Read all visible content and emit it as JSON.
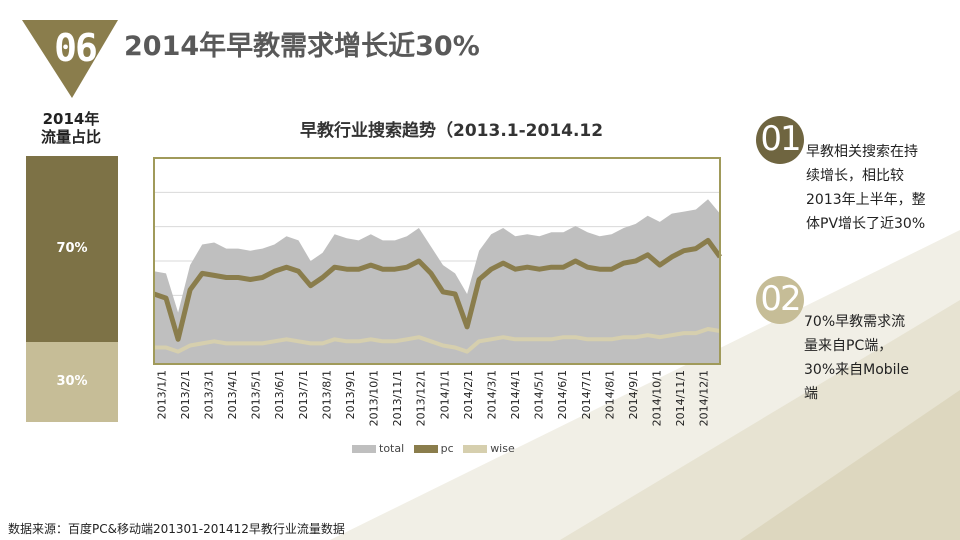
{
  "header": {
    "badge_number": "06",
    "title": "2014年早教需求增长近30%"
  },
  "share_panel": {
    "label_line1": "2014年",
    "label_line2": "流量占比",
    "segments": [
      {
        "label": "70%",
        "value": 70,
        "color": "#7d7246"
      },
      {
        "label": "30%",
        "value": 30,
        "color": "#c6bd97"
      }
    ]
  },
  "notes": [
    {
      "number": "01",
      "text": "早教相关搜索在持\n续增长，相比较\n2013年上半年，整\n体PV增长了近30%"
    },
    {
      "number": "02",
      "text": " 70%早教需求流\n量来自PC端，\n30%来自Mobile\n端"
    }
  ],
  "source": "数据来源：百度PC&移动端201301-201412早教行业流量数据",
  "colors": {
    "total": "#bfbfbf",
    "pc": "#8a7d4c",
    "wise": "#d6cfae",
    "accent": "#6f6540",
    "plot_border": "#a09a5a"
  },
  "chart_data": {
    "type": "line",
    "title": "早教行业搜索趋势（2013.1-2014.12",
    "x_tick_labels": [
      "2013/1/1",
      "2013/2/1",
      "2013/3/1",
      "2013/4/1",
      "2013/5/1",
      "2013/6/1",
      "2013/7/1",
      "2013/8/1",
      "2013/9/1",
      "2013/10/1",
      "2013/11/1",
      "2013/12/1",
      "2014/1/1",
      "2014/2/1",
      "2014/3/1",
      "2014/4/1",
      "2014/5/1",
      "2014/6/1",
      "2014/7/1",
      "2014/8/1",
      "2014/9/1",
      "2014/10/1",
      "2014/11/1",
      "2014/12/1"
    ],
    "grid": true,
    "legend_position": "bottom",
    "y_range": [
      0,
      100
    ],
    "series": [
      {
        "name": "total",
        "style": "area",
        "values": [
          45,
          44,
          25,
          48,
          58,
          59,
          56,
          56,
          55,
          56,
          58,
          62,
          60,
          50,
          54,
          63,
          61,
          60,
          63,
          60,
          60,
          62,
          66,
          57,
          48,
          44,
          34,
          55,
          63,
          66,
          62,
          63,
          62,
          64,
          64,
          67,
          64,
          62,
          63,
          66,
          68,
          72,
          69,
          73,
          74,
          75,
          80,
          73
        ]
      },
      {
        "name": "pc",
        "style": "line",
        "values": [
          34,
          32,
          12,
          36,
          44,
          43,
          42,
          42,
          41,
          42,
          45,
          47,
          45,
          38,
          42,
          47,
          46,
          46,
          48,
          46,
          46,
          47,
          50,
          44,
          35,
          34,
          18,
          41,
          46,
          49,
          46,
          47,
          46,
          47,
          47,
          50,
          47,
          46,
          46,
          49,
          50,
          53,
          48,
          52,
          55,
          56,
          60,
          52
        ]
      },
      {
        "name": "wise",
        "style": "line",
        "values": [
          8,
          8,
          6,
          9,
          10,
          11,
          10,
          10,
          10,
          10,
          11,
          12,
          11,
          10,
          10,
          12,
          11,
          11,
          12,
          11,
          11,
          12,
          13,
          11,
          9,
          8,
          6,
          11,
          12,
          13,
          12,
          12,
          12,
          12,
          13,
          13,
          12,
          12,
          12,
          13,
          13,
          14,
          13,
          14,
          15,
          15,
          17,
          16
        ]
      }
    ]
  }
}
